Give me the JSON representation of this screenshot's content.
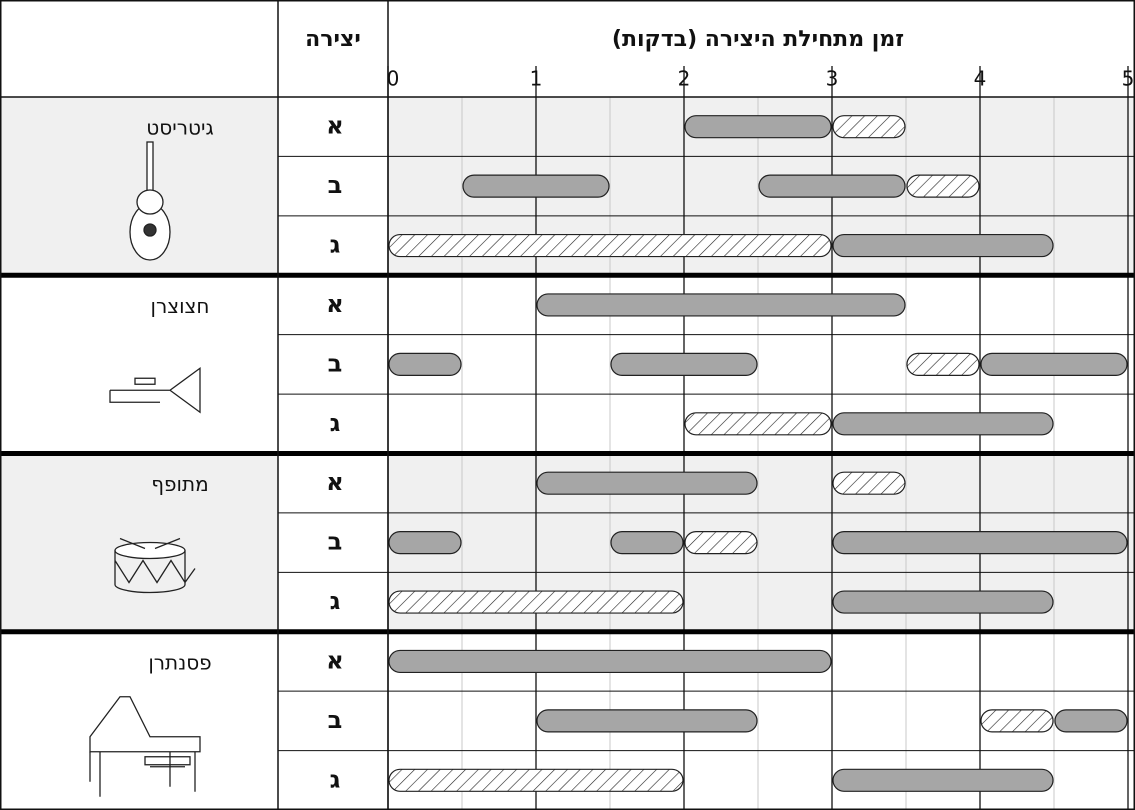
{
  "chart_data": {
    "type": "gantt",
    "title": "זמן מתחילת היצירה (בדקות)",
    "piece_header": "יצירה",
    "xlim": [
      0,
      5
    ],
    "xticks": [
      0,
      1,
      2,
      3,
      4,
      5
    ],
    "minor_xticks": [
      0.5,
      1.5,
      2.5,
      3.5,
      4.5
    ],
    "colors": {
      "solid": "#a6a6a6",
      "hatched": "#ffffff",
      "shade": "#f0f0f0"
    },
    "groups": [
      {
        "name": "גיטריסט",
        "pieces": [
          {
            "name": "א",
            "segments": [
              {
                "start": 2,
                "end": 3,
                "style": "solid"
              },
              {
                "start": 3,
                "end": 3.5,
                "style": "hatched"
              }
            ]
          },
          {
            "name": "ב",
            "segments": [
              {
                "start": 0.5,
                "end": 1.5,
                "style": "solid"
              },
              {
                "start": 2.5,
                "end": 3.5,
                "style": "solid"
              },
              {
                "start": 3.5,
                "end": 4,
                "style": "hatched"
              }
            ]
          },
          {
            "name": "ג",
            "segments": [
              {
                "start": 0,
                "end": 3,
                "style": "hatched"
              },
              {
                "start": 3,
                "end": 4.5,
                "style": "solid"
              }
            ]
          }
        ]
      },
      {
        "name": "חצוצרן",
        "pieces": [
          {
            "name": "א",
            "segments": [
              {
                "start": 1,
                "end": 3.5,
                "style": "solid"
              }
            ]
          },
          {
            "name": "ב",
            "segments": [
              {
                "start": 0,
                "end": 0.5,
                "style": "solid"
              },
              {
                "start": 1.5,
                "end": 2.5,
                "style": "solid"
              },
              {
                "start": 3.5,
                "end": 4,
                "style": "hatched"
              },
              {
                "start": 4,
                "end": 5,
                "style": "solid"
              }
            ]
          },
          {
            "name": "ג",
            "segments": [
              {
                "start": 2,
                "end": 3,
                "style": "hatched"
              },
              {
                "start": 3,
                "end": 4.5,
                "style": "solid"
              }
            ]
          }
        ]
      },
      {
        "name": "מתופף",
        "pieces": [
          {
            "name": "א",
            "segments": [
              {
                "start": 1,
                "end": 2.5,
                "style": "solid"
              },
              {
                "start": 3,
                "end": 3.5,
                "style": "hatched"
              }
            ]
          },
          {
            "name": "ב",
            "segments": [
              {
                "start": 0,
                "end": 0.5,
                "style": "solid"
              },
              {
                "start": 1.5,
                "end": 2,
                "style": "solid"
              },
              {
                "start": 2,
                "end": 2.5,
                "style": "hatched"
              },
              {
                "start": 3,
                "end": 5,
                "style": "solid"
              }
            ]
          },
          {
            "name": "ג",
            "segments": [
              {
                "start": 0,
                "end": 2,
                "style": "hatched"
              },
              {
                "start": 3,
                "end": 4.5,
                "style": "solid"
              }
            ]
          }
        ]
      },
      {
        "name": "פסנתרן",
        "pieces": [
          {
            "name": "א",
            "segments": [
              {
                "start": 0,
                "end": 3,
                "style": "solid"
              }
            ]
          },
          {
            "name": "ב",
            "segments": [
              {
                "start": 1,
                "end": 2.5,
                "style": "solid"
              },
              {
                "start": 4,
                "end": 4.5,
                "style": "hatched"
              },
              {
                "start": 4.5,
                "end": 5,
                "style": "solid"
              }
            ]
          },
          {
            "name": "ג",
            "segments": [
              {
                "start": 0,
                "end": 2,
                "style": "hatched"
              },
              {
                "start": 3,
                "end": 4.5,
                "style": "solid"
              }
            ]
          }
        ]
      }
    ]
  }
}
